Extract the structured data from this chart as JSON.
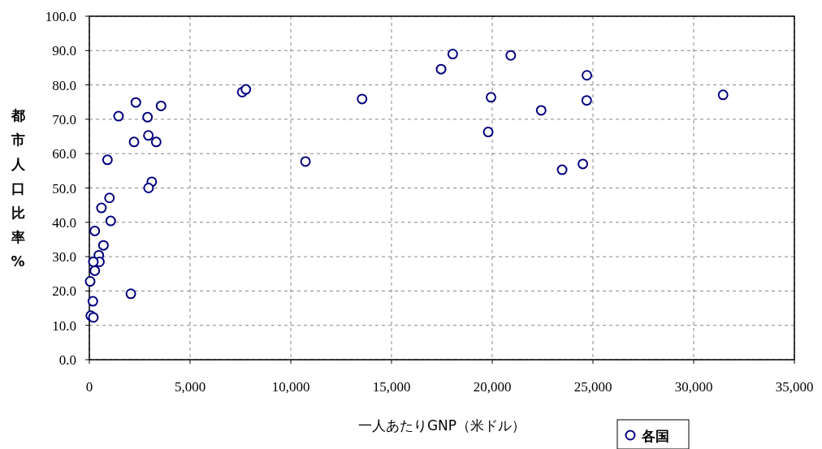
{
  "chart_data": {
    "type": "scatter",
    "xlabel": "一人あたりGNP（米ドル）",
    "ylabel": "都市人口比率%",
    "marker": "circle",
    "grid": true,
    "legend": "bottom",
    "xlim": [
      0,
      35000
    ],
    "xticks": [
      {
        "value": 0,
        "label": "0"
      },
      {
        "value": 5000,
        "label": "5,000"
      },
      {
        "value": 10000,
        "label": "10,000"
      },
      {
        "value": 15000,
        "label": "15,000"
      },
      {
        "value": 20000,
        "label": "20,000"
      },
      {
        "value": 25000,
        "label": "25,000"
      },
      {
        "value": 30000,
        "label": "30,000"
      },
      {
        "value": 35000,
        "label": "35,000"
      }
    ],
    "ylim": [
      0,
      100
    ],
    "yticks": [
      {
        "value": 0,
        "label": "0.0"
      },
      {
        "value": 10,
        "label": "10.0"
      },
      {
        "value": 20,
        "label": "20.0"
      },
      {
        "value": 30,
        "label": "30.0"
      },
      {
        "value": 40,
        "label": "40.0"
      },
      {
        "value": 50,
        "label": "50.0"
      },
      {
        "value": 60,
        "label": "60.0"
      },
      {
        "value": 70,
        "label": "70.0"
      },
      {
        "value": 80,
        "label": "80.0"
      },
      {
        "value": 90,
        "label": "90.0"
      },
      {
        "value": 100,
        "label": "100.0"
      }
    ],
    "series": [
      {
        "name": "各国",
        "color": "#000080",
        "x": [
          2310,
          3560,
          1450,
          2890,
          2930,
          2220,
          3320,
          900,
          3100,
          2940,
          1000,
          600,
          1060,
          270,
          700,
          470,
          500,
          200,
          270,
          40,
          2060,
          175,
          70,
          200,
          7590,
          7770,
          10730,
          13540,
          18040,
          17460,
          20920,
          24700,
          19940,
          24690,
          22430,
          19800,
          31460,
          23470,
          24500
        ],
        "values": [
          74.9,
          73.9,
          70.9,
          70.6,
          65.3,
          63.4,
          63.4,
          58.2,
          51.8,
          50.0,
          47.1,
          44.2,
          40.4,
          37.5,
          33.3,
          30.4,
          28.5,
          28.5,
          25.9,
          22.8,
          19.2,
          17.0,
          12.8,
          12.3,
          77.9,
          78.7,
          57.7,
          75.9,
          89.0,
          84.6,
          88.6,
          82.8,
          76.4,
          75.5,
          72.6,
          66.3,
          77.1,
          55.3,
          57.0
        ]
      }
    ]
  }
}
